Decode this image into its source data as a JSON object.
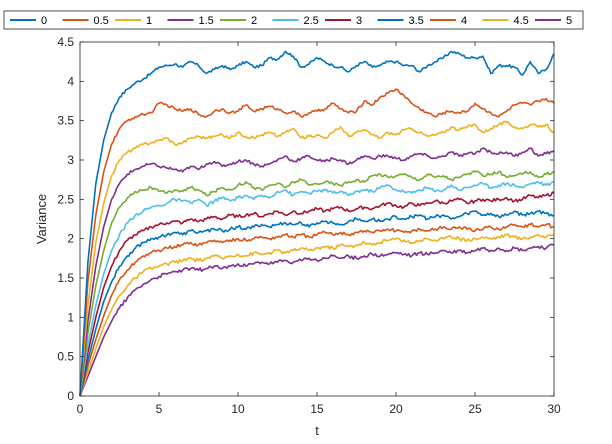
{
  "chart_data": {
    "type": "line",
    "xlabel": "t",
    "ylabel": "Variance",
    "xlim": [
      0,
      30
    ],
    "ylim": [
      0,
      4.5
    ],
    "xticks": [
      "0",
      "5",
      "10",
      "15",
      "20",
      "25",
      "30"
    ],
    "yticks": [
      "0",
      "0.5",
      "1",
      "1.5",
      "2",
      "2.5",
      "3",
      "3.5",
      "4",
      "4.5"
    ],
    "grid": false,
    "legend_position": "top",
    "x": [
      0,
      0.5,
      1,
      1.5,
      2,
      2.5,
      3,
      3.5,
      4,
      4.5,
      5,
      5.5,
      6,
      6.5,
      7,
      7.5,
      8,
      8.5,
      9,
      9.5,
      10,
      10.5,
      11,
      11.5,
      12,
      12.5,
      13,
      13.5,
      14,
      14.5,
      15,
      15.5,
      16,
      16.5,
      17,
      17.5,
      18,
      18.5,
      19,
      19.5,
      20,
      20.5,
      21,
      21.5,
      22,
      22.5,
      23,
      23.5,
      24,
      24.5,
      25,
      25.5,
      26,
      26.5,
      27,
      27.5,
      28,
      28.5,
      29,
      29.5,
      30
    ],
    "series": [
      {
        "name": "0",
        "color": "#0072BD",
        "values": [
          0,
          1.7,
          2.7,
          3.25,
          3.6,
          3.8,
          3.9,
          3.98,
          4.03,
          4.1,
          4.18,
          4.2,
          4.22,
          4.18,
          4.25,
          4.2,
          4.1,
          4.15,
          4.2,
          4.15,
          4.2,
          4.25,
          4.18,
          4.2,
          4.3,
          4.28,
          4.38,
          4.32,
          4.18,
          4.22,
          4.3,
          4.25,
          4.2,
          4.18,
          4.12,
          4.2,
          4.25,
          4.18,
          4.2,
          4.25,
          4.25,
          4.2,
          4.2,
          4.12,
          4.2,
          4.25,
          4.3,
          4.38,
          4.35,
          4.3,
          4.3,
          4.32,
          4.1,
          4.2,
          4.2,
          4.18,
          4.08,
          4.25,
          4.1,
          4.15,
          4.35
        ]
      },
      {
        "name": "0.5",
        "color": "#D95319",
        "values": [
          0,
          1.45,
          2.3,
          2.85,
          3.2,
          3.4,
          3.5,
          3.55,
          3.58,
          3.6,
          3.72,
          3.7,
          3.65,
          3.62,
          3.65,
          3.58,
          3.55,
          3.62,
          3.65,
          3.6,
          3.62,
          3.7,
          3.62,
          3.65,
          3.68,
          3.65,
          3.6,
          3.62,
          3.55,
          3.6,
          3.62,
          3.65,
          3.72,
          3.65,
          3.6,
          3.62,
          3.75,
          3.7,
          3.8,
          3.85,
          3.9,
          3.82,
          3.72,
          3.65,
          3.6,
          3.55,
          3.6,
          3.62,
          3.6,
          3.62,
          3.72,
          3.65,
          3.6,
          3.55,
          3.62,
          3.7,
          3.72,
          3.7,
          3.75,
          3.78,
          3.72
        ]
      },
      {
        "name": "1",
        "color": "#EDB120",
        "values": [
          0,
          1.15,
          1.95,
          2.45,
          2.8,
          3.0,
          3.1,
          3.15,
          3.2,
          3.22,
          3.25,
          3.28,
          3.2,
          3.22,
          3.28,
          3.3,
          3.28,
          3.3,
          3.32,
          3.28,
          3.35,
          3.3,
          3.28,
          3.32,
          3.35,
          3.3,
          3.35,
          3.4,
          3.28,
          3.3,
          3.32,
          3.28,
          3.35,
          3.42,
          3.3,
          3.35,
          3.38,
          3.32,
          3.28,
          3.35,
          3.32,
          3.38,
          3.4,
          3.35,
          3.3,
          3.32,
          3.35,
          3.42,
          3.38,
          3.42,
          3.45,
          3.35,
          3.4,
          3.45,
          3.48,
          3.42,
          3.4,
          3.45,
          3.42,
          3.45,
          3.35
        ]
      },
      {
        "name": "1.5",
        "color": "#7E2F8E",
        "values": [
          0,
          0.95,
          1.65,
          2.15,
          2.5,
          2.7,
          2.82,
          2.88,
          2.92,
          2.95,
          2.92,
          2.9,
          2.88,
          2.85,
          2.92,
          2.88,
          2.95,
          2.98,
          2.92,
          2.95,
          2.98,
          3.0,
          2.95,
          2.92,
          2.95,
          3.0,
          3.05,
          2.98,
          3.02,
          3.05,
          3.0,
          2.98,
          3.02,
          3.0,
          2.95,
          3.0,
          3.05,
          3.02,
          3.05,
          3.05,
          3.02,
          3.0,
          3.05,
          3.08,
          3.05,
          3.02,
          3.05,
          3.1,
          3.05,
          3.08,
          3.08,
          3.15,
          3.1,
          3.08,
          3.1,
          3.05,
          3.1,
          3.15,
          3.05,
          3.08,
          3.12
        ]
      },
      {
        "name": "2",
        "color": "#77AC30",
        "values": [
          0,
          0.8,
          1.4,
          1.85,
          2.2,
          2.4,
          2.52,
          2.6,
          2.62,
          2.65,
          2.6,
          2.58,
          2.62,
          2.6,
          2.65,
          2.62,
          2.55,
          2.6,
          2.65,
          2.62,
          2.68,
          2.72,
          2.65,
          2.62,
          2.68,
          2.7,
          2.65,
          2.72,
          2.75,
          2.68,
          2.7,
          2.72,
          2.7,
          2.68,
          2.72,
          2.75,
          2.72,
          2.8,
          2.82,
          2.78,
          2.8,
          2.82,
          2.78,
          2.75,
          2.82,
          2.78,
          2.8,
          2.75,
          2.78,
          2.82,
          2.85,
          2.8,
          2.82,
          2.85,
          2.78,
          2.8,
          2.82,
          2.85,
          2.78,
          2.82,
          2.85
        ]
      },
      {
        "name": "2.5",
        "color": "#4DBEEE",
        "values": [
          0,
          0.65,
          1.15,
          1.55,
          1.85,
          2.05,
          2.2,
          2.3,
          2.35,
          2.4,
          2.42,
          2.45,
          2.5,
          2.48,
          2.45,
          2.5,
          2.42,
          2.48,
          2.52,
          2.48,
          2.52,
          2.55,
          2.5,
          2.55,
          2.52,
          2.6,
          2.62,
          2.55,
          2.6,
          2.58,
          2.6,
          2.62,
          2.58,
          2.6,
          2.55,
          2.6,
          2.62,
          2.6,
          2.65,
          2.68,
          2.62,
          2.6,
          2.58,
          2.62,
          2.65,
          2.6,
          2.62,
          2.68,
          2.62,
          2.65,
          2.68,
          2.7,
          2.65,
          2.68,
          2.7,
          2.68,
          2.65,
          2.7,
          2.72,
          2.68,
          2.72
        ]
      },
      {
        "name": "3",
        "color": "#A2142F",
        "values": [
          0,
          0.55,
          1.0,
          1.38,
          1.65,
          1.85,
          1.98,
          2.05,
          2.1,
          2.15,
          2.18,
          2.2,
          2.22,
          2.2,
          2.25,
          2.22,
          2.25,
          2.28,
          2.25,
          2.3,
          2.28,
          2.3,
          2.32,
          2.28,
          2.32,
          2.35,
          2.3,
          2.35,
          2.32,
          2.35,
          2.38,
          2.35,
          2.38,
          2.4,
          2.35,
          2.38,
          2.4,
          2.38,
          2.42,
          2.45,
          2.42,
          2.4,
          2.45,
          2.42,
          2.45,
          2.48,
          2.45,
          2.48,
          2.5,
          2.45,
          2.48,
          2.5,
          2.48,
          2.5,
          2.52,
          2.48,
          2.5,
          2.55,
          2.52,
          2.55,
          2.58
        ]
      },
      {
        "name": "3.5",
        "color": "#0072BD",
        "values": [
          0,
          0.45,
          0.85,
          1.2,
          1.45,
          1.65,
          1.78,
          1.88,
          1.95,
          2.0,
          2.02,
          2.05,
          2.08,
          2.05,
          2.1,
          2.08,
          2.1,
          2.12,
          2.1,
          2.12,
          2.15,
          2.12,
          2.15,
          2.18,
          2.15,
          2.18,
          2.2,
          2.18,
          2.2,
          2.15,
          2.2,
          2.22,
          2.2,
          2.18,
          2.22,
          2.25,
          2.22,
          2.25,
          2.22,
          2.25,
          2.28,
          2.25,
          2.28,
          2.3,
          2.25,
          2.28,
          2.3,
          2.25,
          2.28,
          2.32,
          2.35,
          2.3,
          2.32,
          2.28,
          2.3,
          2.35,
          2.3,
          2.32,
          2.35,
          2.32,
          2.3
        ]
      },
      {
        "name": "4",
        "color": "#D95319",
        "values": [
          0,
          0.38,
          0.72,
          1.02,
          1.28,
          1.48,
          1.6,
          1.7,
          1.78,
          1.82,
          1.85,
          1.88,
          1.9,
          1.92,
          1.95,
          1.92,
          1.95,
          1.98,
          1.95,
          1.98,
          2.0,
          1.98,
          2.0,
          2.02,
          2.0,
          2.02,
          2.05,
          2.02,
          2.05,
          2.02,
          2.05,
          2.08,
          2.05,
          2.08,
          2.05,
          2.08,
          2.1,
          2.08,
          2.1,
          2.12,
          2.1,
          2.08,
          2.1,
          2.12,
          2.1,
          2.12,
          2.15,
          2.12,
          2.15,
          2.12,
          2.1,
          2.12,
          2.15,
          2.12,
          2.15,
          2.18,
          2.15,
          2.18,
          2.15,
          2.18,
          2.15
        ]
      },
      {
        "name": "4.5",
        "color": "#EDB120",
        "values": [
          0,
          0.3,
          0.6,
          0.88,
          1.1,
          1.28,
          1.4,
          1.5,
          1.58,
          1.62,
          1.65,
          1.68,
          1.7,
          1.72,
          1.75,
          1.72,
          1.75,
          1.78,
          1.75,
          1.78,
          1.8,
          1.78,
          1.82,
          1.8,
          1.82,
          1.85,
          1.82,
          1.85,
          1.88,
          1.85,
          1.88,
          1.9,
          1.88,
          1.92,
          1.9,
          1.92,
          1.95,
          1.92,
          1.95,
          1.98,
          2.0,
          1.98,
          1.95,
          1.98,
          2.0,
          1.98,
          2.0,
          2.02,
          2.0,
          1.98,
          2.0,
          2.02,
          2.0,
          2.02,
          2.05,
          2.02,
          2.0,
          2.02,
          2.05,
          2.02,
          2.05
        ]
      },
      {
        "name": "5",
        "color": "#7E2F8E",
        "values": [
          0,
          0.25,
          0.5,
          0.75,
          0.95,
          1.12,
          1.25,
          1.35,
          1.42,
          1.48,
          1.52,
          1.55,
          1.58,
          1.6,
          1.62,
          1.6,
          1.62,
          1.65,
          1.62,
          1.65,
          1.68,
          1.65,
          1.68,
          1.7,
          1.68,
          1.7,
          1.72,
          1.7,
          1.72,
          1.75,
          1.72,
          1.75,
          1.78,
          1.75,
          1.78,
          1.75,
          1.78,
          1.8,
          1.78,
          1.8,
          1.82,
          1.8,
          1.78,
          1.82,
          1.8,
          1.82,
          1.85,
          1.82,
          1.85,
          1.82,
          1.85,
          1.88,
          1.85,
          1.88,
          1.85,
          1.88,
          1.85,
          1.88,
          1.9,
          1.88,
          1.92
        ]
      }
    ]
  }
}
